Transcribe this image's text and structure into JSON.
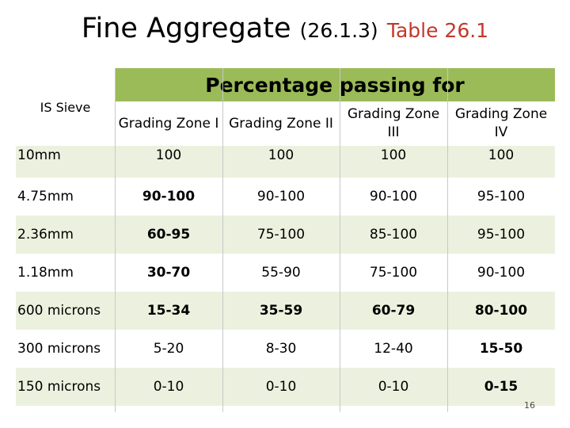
{
  "slide": {
    "title_main": "Fine Aggregate",
    "title_ref": "(26.1.3)",
    "title_table": "Table 26.1",
    "page_number": "16"
  },
  "table": {
    "sieve_header": "IS Sieve",
    "percent_header": "Percentage passing for",
    "zones": [
      "Grading Zone I",
      "Grading Zone II",
      "Grading Zone III",
      "Grading Zone IV"
    ],
    "rows": [
      {
        "sieve": "10mm",
        "values": [
          "100",
          "100",
          "100",
          "100"
        ]
      },
      {
        "sieve": "4.75mm",
        "values": [
          "90-100",
          "90-100",
          "90-100",
          "95-100"
        ]
      },
      {
        "sieve": "2.36mm",
        "values": [
          "60-95",
          "75-100",
          "85-100",
          "95-100"
        ]
      },
      {
        "sieve": "1.18mm",
        "values": [
          "30-70",
          "55-90",
          "75-100",
          "90-100"
        ]
      },
      {
        "sieve": "600 microns",
        "values": [
          "15-34",
          "35-59",
          "60-79",
          "80-100"
        ]
      },
      {
        "sieve": "300 microns",
        "values": [
          "5-20",
          "8-30",
          "12-40",
          "15-50"
        ]
      },
      {
        "sieve": "150 microns",
        "values": [
          "0-10",
          "0-10",
          "0-10",
          "0-15"
        ]
      }
    ]
  },
  "colors": {
    "header_band": "#9bbb59",
    "row_shade": "#ebf1de",
    "title_accent": "#c0392b"
  }
}
